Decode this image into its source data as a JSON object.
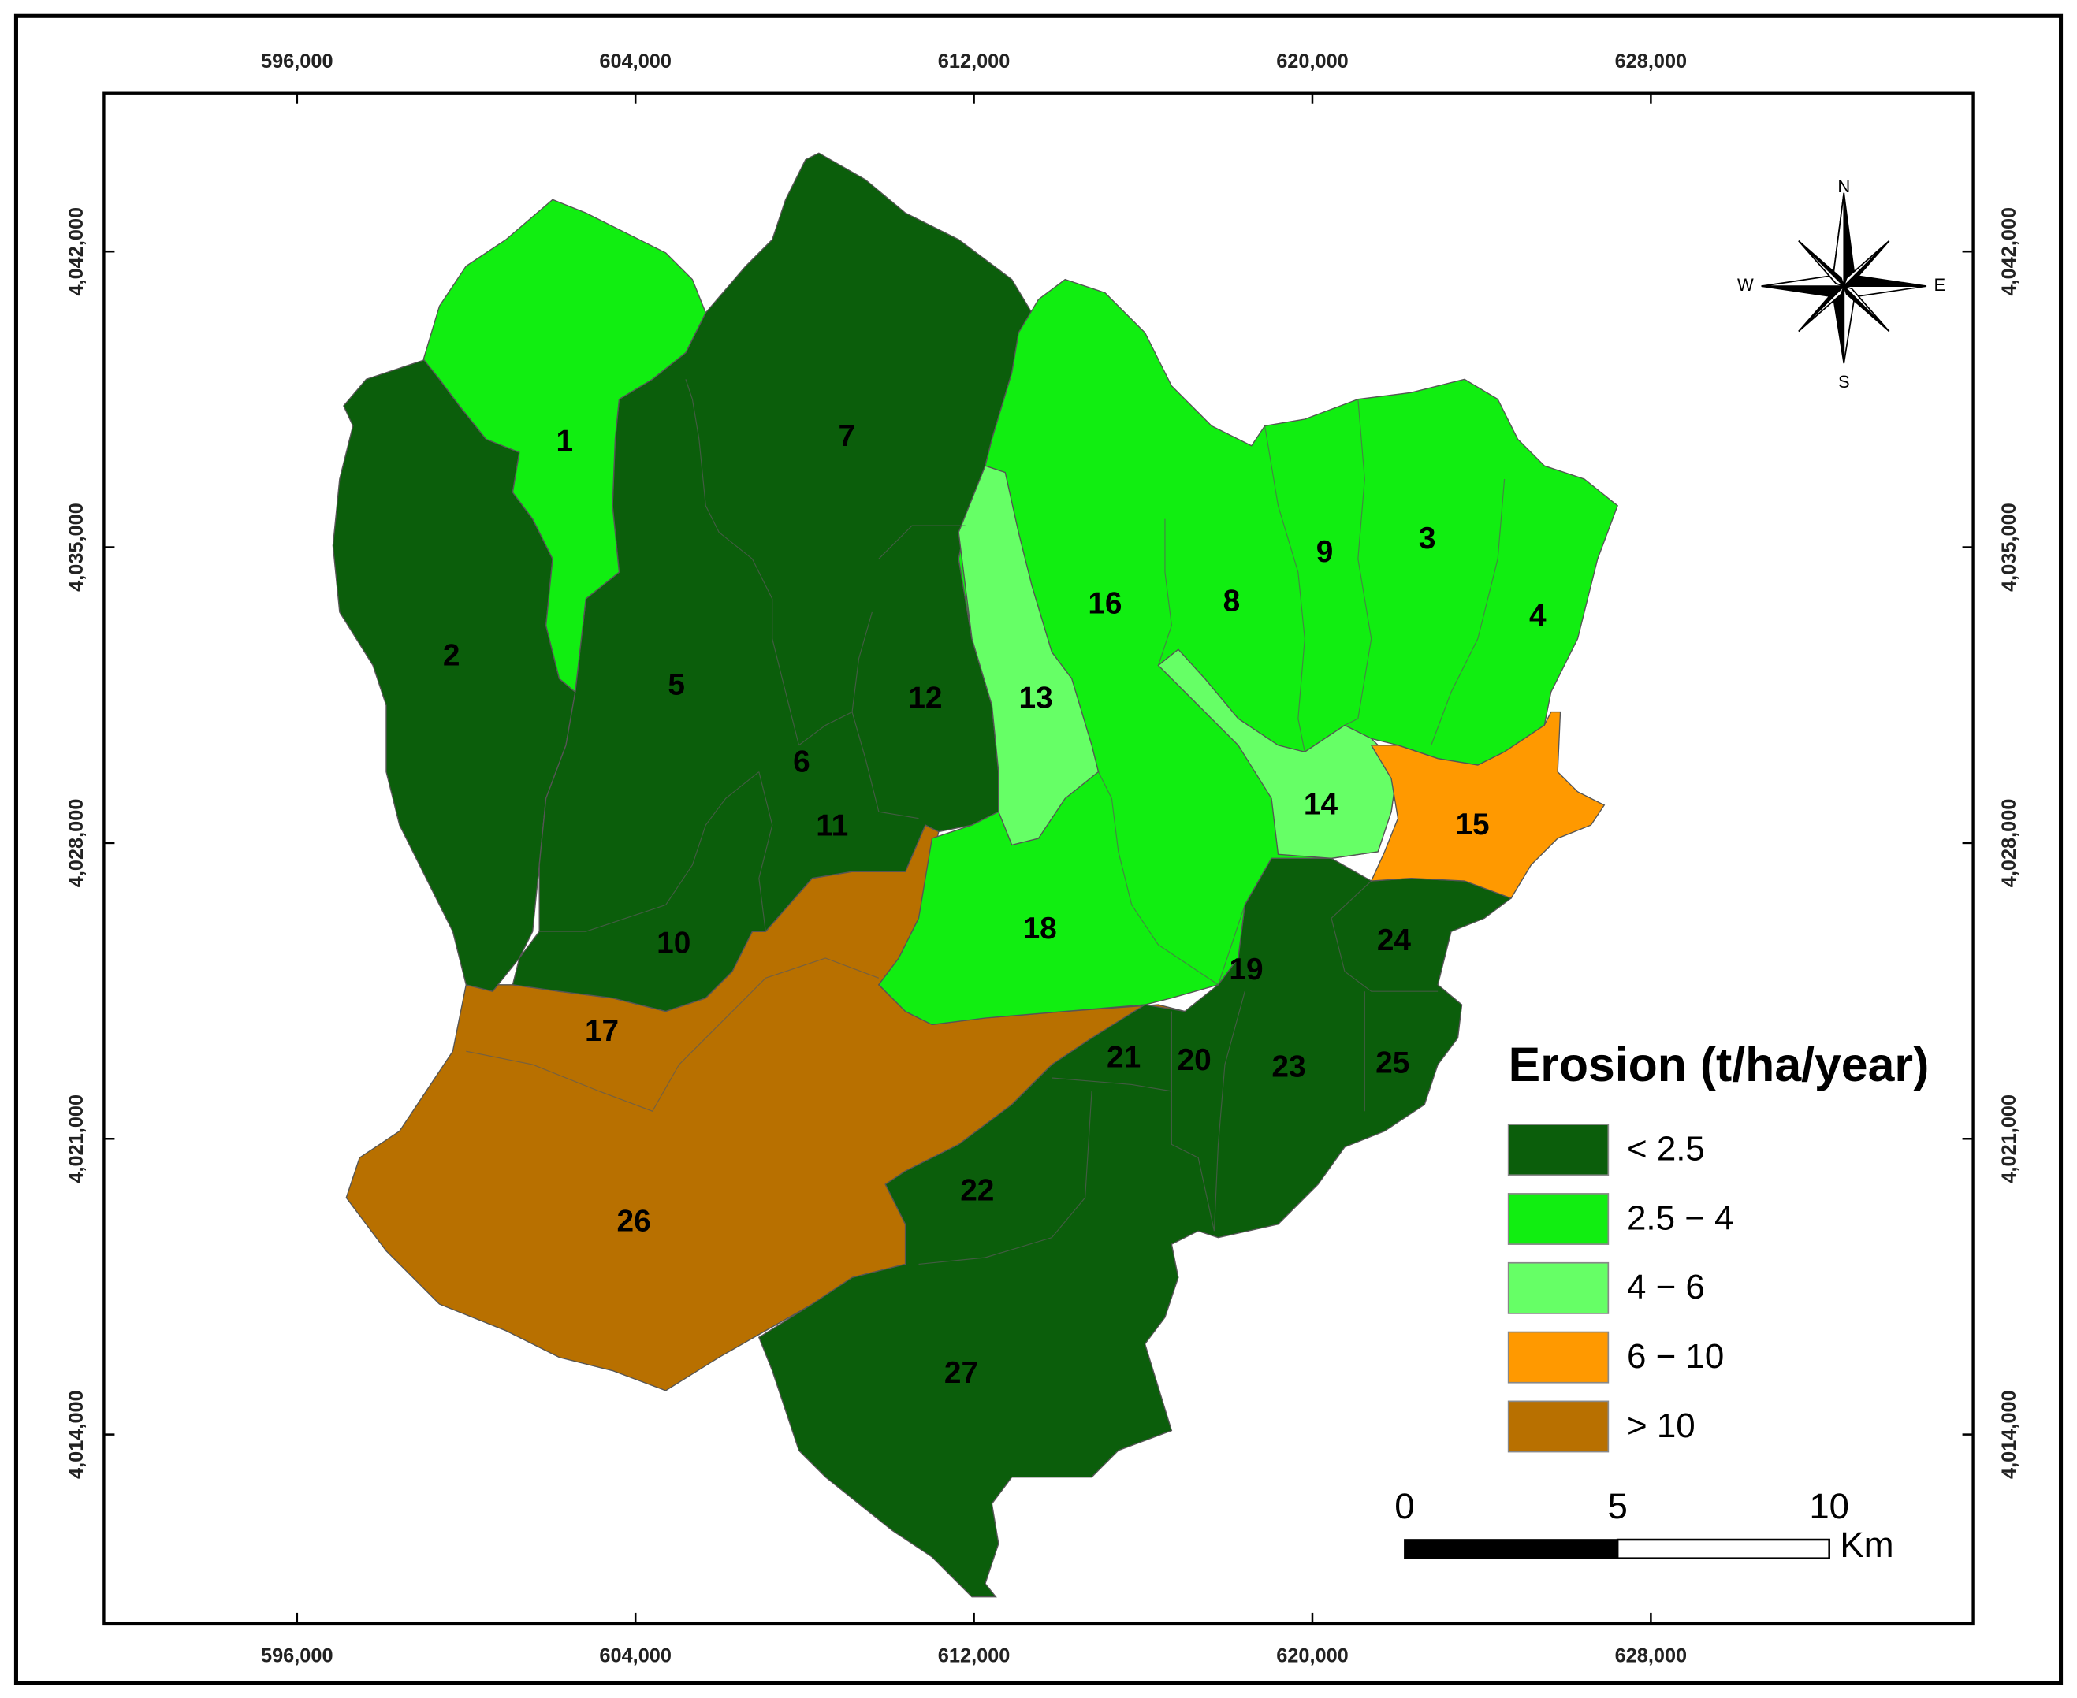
{
  "map": {
    "legend": {
      "title": "Erosion (t/ha/year)",
      "items": [
        {
          "label": "< 2.5",
          "color": "#0b5e0b"
        },
        {
          "label": "2.5 − 4",
          "color": "#11ee11"
        },
        {
          "label": "4 − 6",
          "color": "#66ff66"
        },
        {
          "label": "6 − 10",
          "color": "#ff9900"
        },
        {
          "label": "> 10",
          "color": "#b87000"
        }
      ]
    },
    "xticks": [
      {
        "value": 596000,
        "label": "596,000"
      },
      {
        "value": 604000,
        "label": "604,000"
      },
      {
        "value": 612000,
        "label": "612,000"
      },
      {
        "value": 620000,
        "label": "620,000"
      },
      {
        "value": 628000,
        "label": "628,000"
      }
    ],
    "yticks": [
      {
        "value": 4042000,
        "label": "4,042,000"
      },
      {
        "value": 4035000,
        "label": "4,035,000"
      },
      {
        "value": 4028000,
        "label": "4,028,000"
      },
      {
        "value": 4021000,
        "label": "4,021,000"
      },
      {
        "value": 4014000,
        "label": "4,014,000"
      }
    ],
    "subbasins": [
      "1",
      "2",
      "3",
      "4",
      "5",
      "6",
      "7",
      "8",
      "9",
      "10",
      "11",
      "12",
      "13",
      "14",
      "15",
      "16",
      "17",
      "18",
      "19",
      "20",
      "21",
      "22",
      "23",
      "24",
      "25",
      "26",
      "27"
    ],
    "compass": {
      "north": "N",
      "south": "S",
      "east": "E",
      "west": "W"
    },
    "scale_bar": {
      "ticks": [
        "0",
        "5",
        "10"
      ],
      "unit": "Km"
    }
  }
}
